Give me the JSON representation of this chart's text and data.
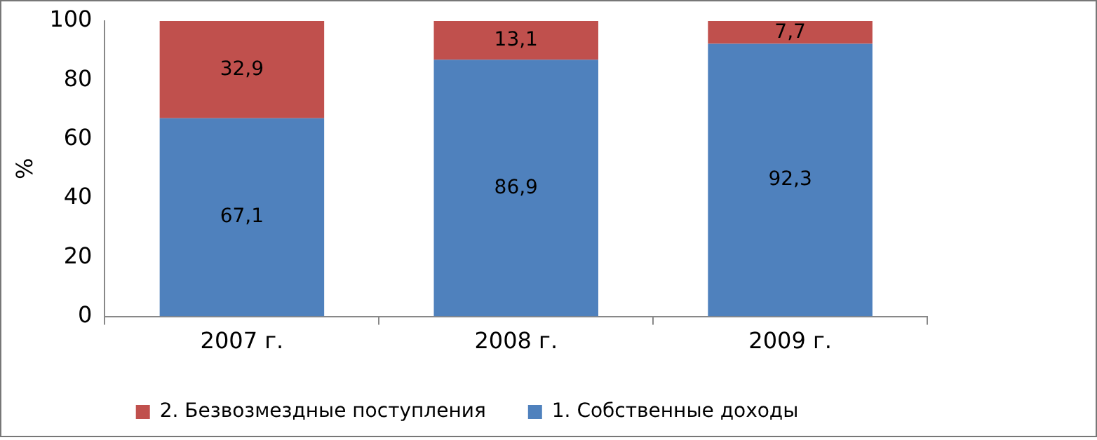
{
  "chart_data": {
    "type": "bar",
    "stacked": true,
    "categories": [
      "2007 г.",
      "2008 г.",
      "2009 г."
    ],
    "series": [
      {
        "name": "1. Собственные доходы",
        "color": "#4f81bd",
        "values": [
          67.1,
          86.9,
          92.3
        ],
        "value_labels": [
          "67,1",
          "86,9",
          "92,3"
        ]
      },
      {
        "name": "2. Безвозмездные поступления",
        "color": "#c0504d",
        "values": [
          32.9,
          13.1,
          7.7
        ],
        "value_labels": [
          "32,9",
          "13,1",
          "7,7"
        ]
      }
    ],
    "ylabel": "%",
    "ylim": [
      0,
      100
    ],
    "yticks": [
      0,
      20,
      40,
      60,
      80,
      100
    ],
    "grid": false,
    "legend": "bottom"
  }
}
